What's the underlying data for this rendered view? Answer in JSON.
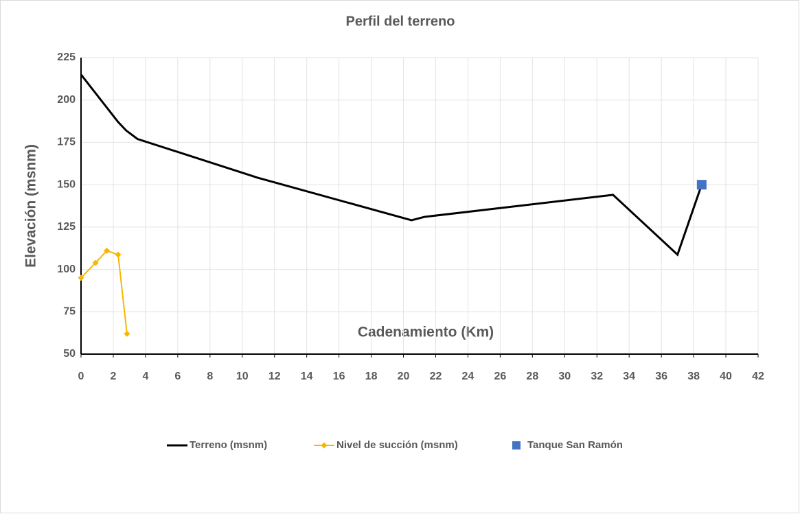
{
  "chart_data": {
    "type": "scatter",
    "title": "Perfil del terreno",
    "xlabel": "Cadenamiento (Km)",
    "ylabel": "Elevación (msnm)",
    "xlim": [
      0,
      42
    ],
    "xticks": [
      0,
      2,
      4,
      6,
      8,
      10,
      12,
      14,
      16,
      18,
      20,
      22,
      24,
      26,
      28,
      30,
      32,
      34,
      36,
      38,
      40,
      42
    ],
    "ylim": [
      50,
      225
    ],
    "yticks": [
      50,
      75,
      100,
      125,
      150,
      175,
      200,
      225
    ],
    "grid": true,
    "legend": "bottom",
    "series": [
      {
        "name": "Terreno (msnm)",
        "color": "#000000",
        "marker": "none",
        "line": true,
        "x": [
          0,
          2.3,
          2.8,
          3.5,
          11,
          20.5,
          21.3,
          33,
          37,
          38.5
        ],
        "values": [
          215,
          187,
          182,
          177,
          154,
          129,
          131,
          144,
          108.7,
          150
        ]
      },
      {
        "name": "Nivel de succión (msnm)",
        "color": "#f5b800",
        "marker": "diamond",
        "line": true,
        "x": [
          0,
          0.9,
          1.6,
          2.3,
          2.85
        ],
        "values": [
          95,
          103.9,
          111,
          108.7,
          62
        ]
      },
      {
        "name": "Tanque San Ramón",
        "color": "#4472c4",
        "marker": "square",
        "line": false,
        "x": [
          38.5
        ],
        "values": [
          150
        ]
      }
    ]
  }
}
